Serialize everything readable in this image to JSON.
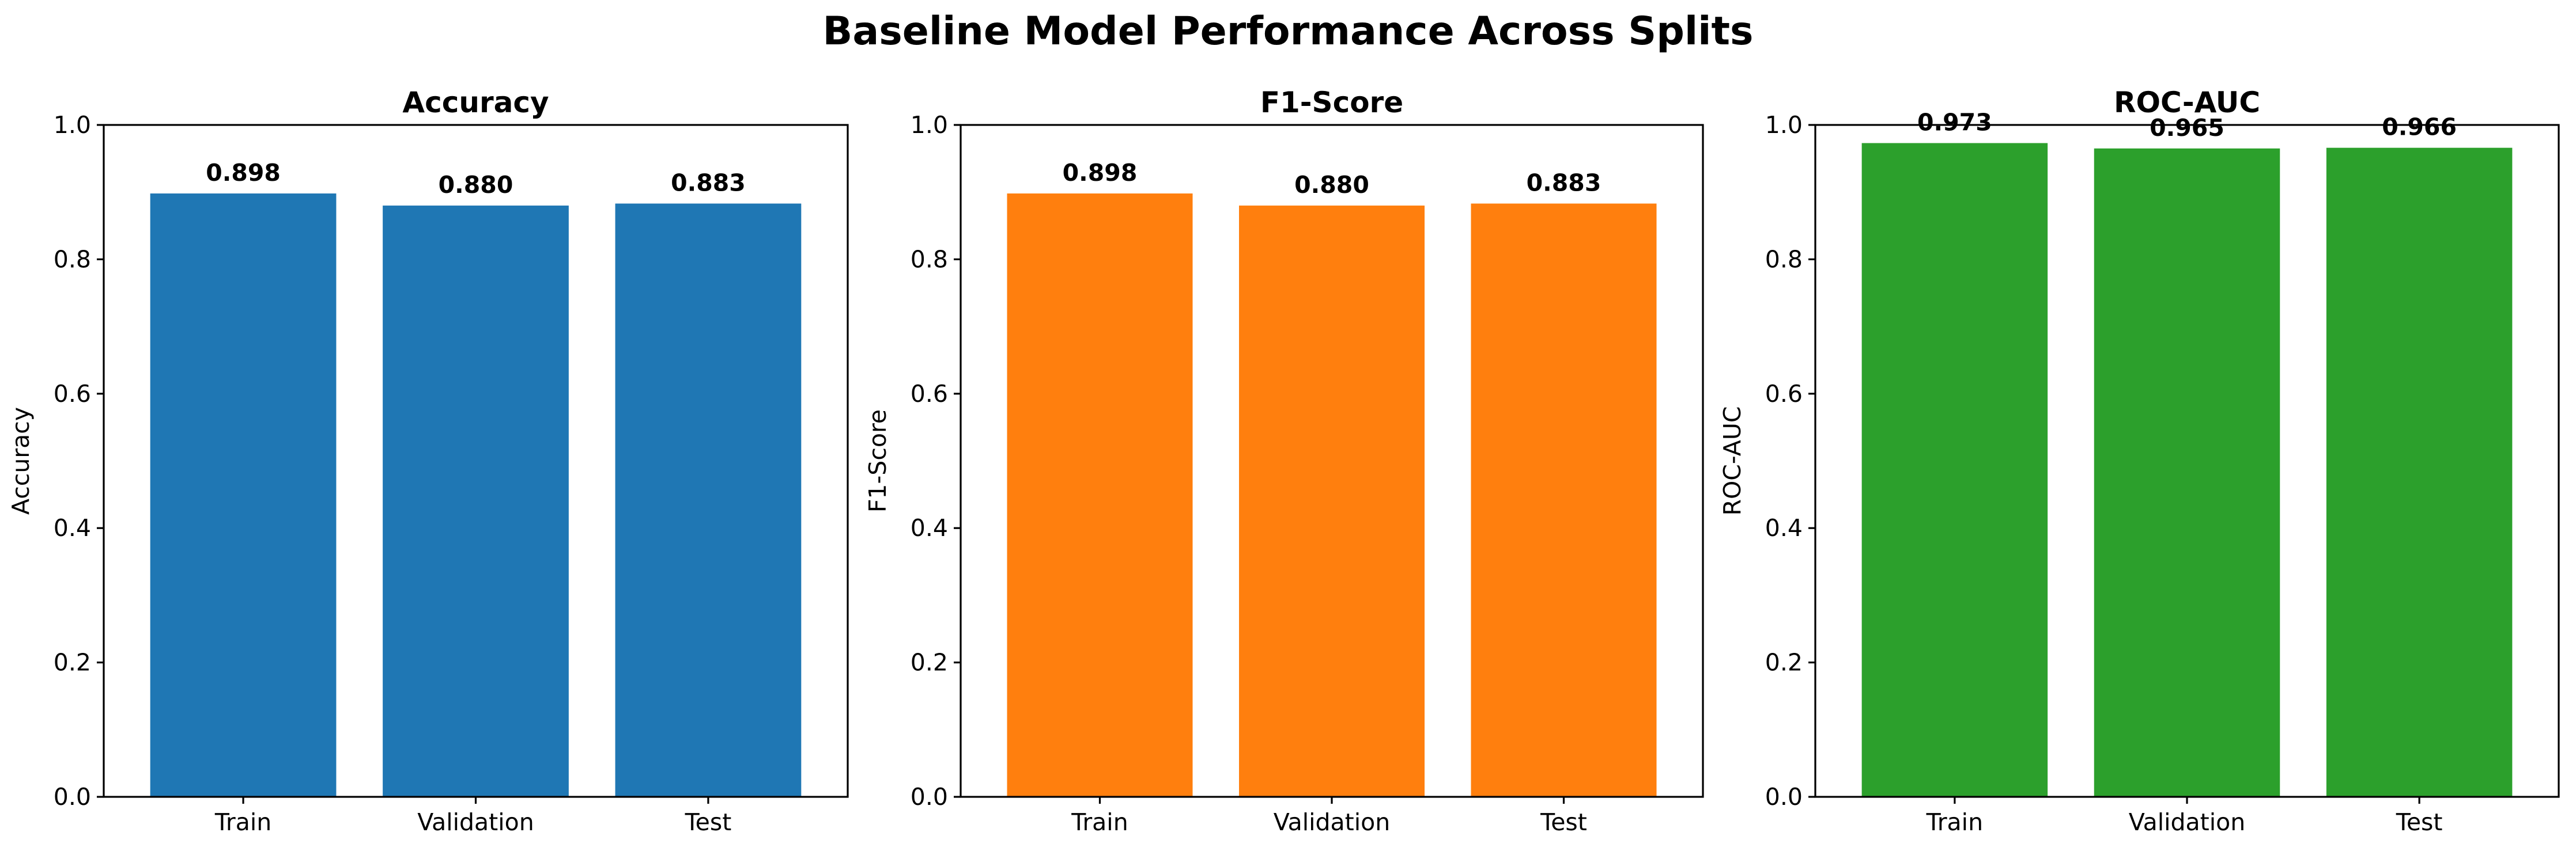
{
  "figure": {
    "title": "Baseline Model Performance Across Splits"
  },
  "chart_data": [
    {
      "type": "bar",
      "title": "Accuracy",
      "xlabel": "",
      "ylabel": "Accuracy",
      "categories": [
        "Train",
        "Validation",
        "Test"
      ],
      "values": [
        0.898,
        0.88,
        0.883
      ],
      "data_labels": [
        "0.898",
        "0.880",
        "0.883"
      ],
      "ylim": [
        0,
        1.0
      ],
      "yticks": [
        0.0,
        0.2,
        0.4,
        0.6,
        0.8,
        1.0
      ],
      "ytick_labels": [
        "0.0",
        "0.2",
        "0.4",
        "0.6",
        "0.8",
        "1.0"
      ],
      "color": "#1f77b4",
      "grid": false
    },
    {
      "type": "bar",
      "title": "F1-Score",
      "xlabel": "",
      "ylabel": "F1-Score",
      "categories": [
        "Train",
        "Validation",
        "Test"
      ],
      "values": [
        0.898,
        0.88,
        0.883
      ],
      "data_labels": [
        "0.898",
        "0.880",
        "0.883"
      ],
      "ylim": [
        0,
        1.0
      ],
      "yticks": [
        0.0,
        0.2,
        0.4,
        0.6,
        0.8,
        1.0
      ],
      "ytick_labels": [
        "0.0",
        "0.2",
        "0.4",
        "0.6",
        "0.8",
        "1.0"
      ],
      "color": "#ff7f0e",
      "grid": false
    },
    {
      "type": "bar",
      "title": "ROC-AUC",
      "xlabel": "",
      "ylabel": "ROC-AUC",
      "categories": [
        "Train",
        "Validation",
        "Test"
      ],
      "values": [
        0.973,
        0.965,
        0.966
      ],
      "data_labels": [
        "0.973",
        "0.965",
        "0.966"
      ],
      "ylim": [
        0,
        1.0
      ],
      "yticks": [
        0.0,
        0.2,
        0.4,
        0.6,
        0.8,
        1.0
      ],
      "ytick_labels": [
        "0.0",
        "0.2",
        "0.4",
        "0.6",
        "0.8",
        "1.0"
      ],
      "color": "#2ca02c",
      "grid": false
    }
  ]
}
